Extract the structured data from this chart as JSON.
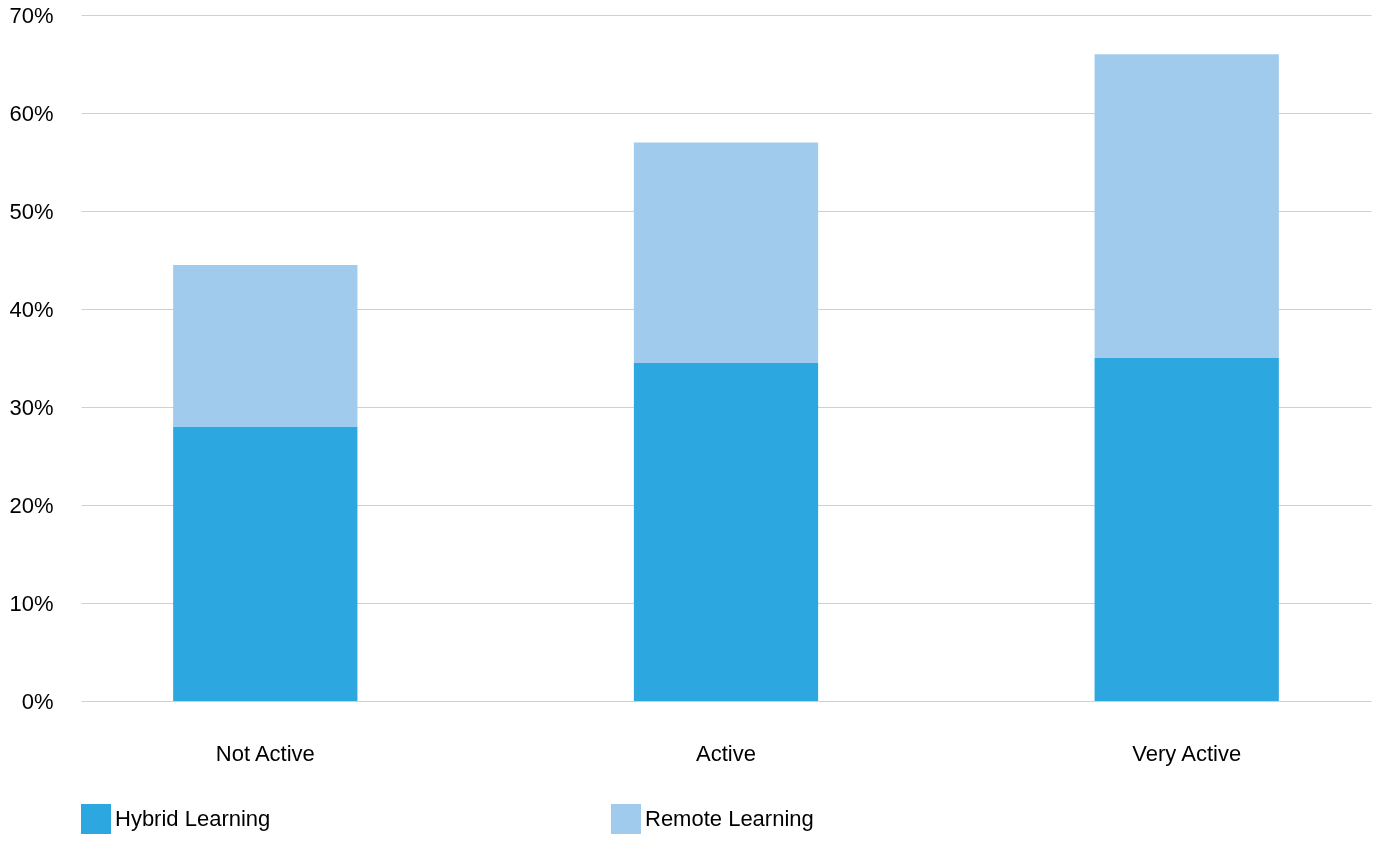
{
  "chart_data": {
    "type": "bar",
    "stacked": true,
    "categories": [
      "Not Active",
      "Active",
      "Very Active"
    ],
    "series": [
      {
        "name": "Hybrid Learning",
        "color": "#2ca7e0",
        "values": [
          28,
          34.5,
          35
        ]
      },
      {
        "name": "Remote Learning",
        "color": "#a0cbec",
        "values": [
          16.5,
          22.5,
          31
        ]
      }
    ],
    "ylim": [
      0,
      70
    ],
    "yticks": [
      {
        "value": 0,
        "label": "0%"
      },
      {
        "value": 10,
        "label": "10%"
      },
      {
        "value": 20,
        "label": "20%"
      },
      {
        "value": 30,
        "label": "30%"
      },
      {
        "value": 40,
        "label": "40%"
      },
      {
        "value": 50,
        "label": "50%"
      },
      {
        "value": 60,
        "label": "60%"
      },
      {
        "value": 70,
        "label": "70%"
      }
    ],
    "grid": "y",
    "legend": "bottom"
  }
}
